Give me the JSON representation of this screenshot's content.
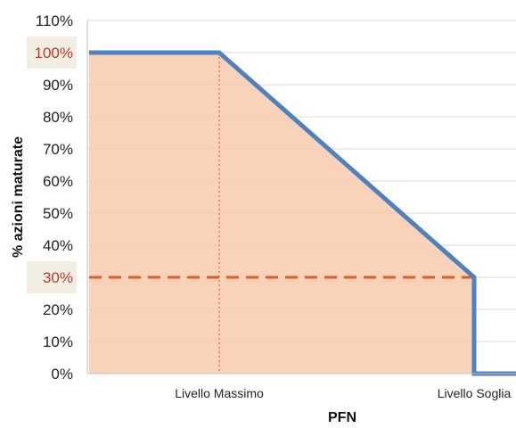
{
  "chart_data": {
    "type": "area",
    "title": "",
    "xlabel": "PFN",
    "ylabel": "% azioni maturate",
    "ylim": [
      0,
      110
    ],
    "y_ticks": [
      "0%",
      "10%",
      "20%",
      "30%",
      "40%",
      "50%",
      "60%",
      "70%",
      "80%",
      "90%",
      "100%",
      "110%"
    ],
    "highlighted_ticks": [
      "100%",
      "30%"
    ],
    "categories": [
      "Livello Massimo",
      "Livello Soglia"
    ],
    "series": [
      {
        "points": [
          {
            "x": "start",
            "y": 100
          },
          {
            "x": "Livello Massimo",
            "y": 100
          },
          {
            "x": "Livello Soglia",
            "y": 30
          },
          {
            "x": "Livello Soglia",
            "y": 0
          },
          {
            "x": "end",
            "y": 0
          }
        ]
      }
    ],
    "reference_lines": [
      {
        "orientation": "horizontal",
        "y": 30,
        "style": "dashed"
      },
      {
        "orientation": "vertical",
        "x": "Livello Massimo",
        "style": "dotted"
      }
    ],
    "grid": "horizontal",
    "colors": {
      "line": "#4f81bd",
      "fill": "#f8cbad",
      "dashed_ref": "#e05a2a",
      "dotted_ref": "#ed7d31",
      "tick_highlight_bg": "#f3eee3",
      "tick_highlight_text": "#c0392b",
      "grid": "#d9d9d9"
    }
  }
}
